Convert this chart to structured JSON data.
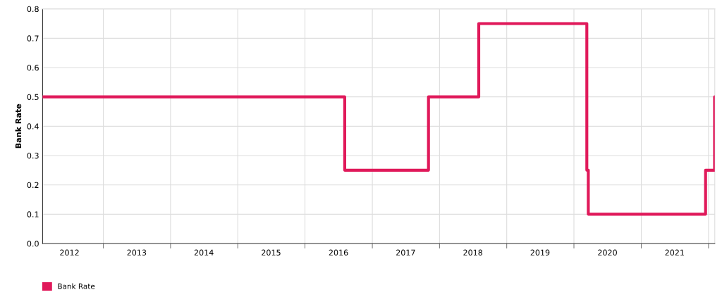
{
  "chart_data": {
    "type": "step",
    "ylabel": "Bank Rate",
    "x": [
      "2012-02-06",
      "2016-08-04",
      "2017-11-02",
      "2018-08-02",
      "2020-03-11",
      "2020-03-19",
      "2021-12-16",
      "2022-02-03",
      "2022-02-04"
    ],
    "series": [
      {
        "name": "Bank Rate",
        "color": "#e0195a",
        "values": [
          0.5,
          0.25,
          0.5,
          0.75,
          0.25,
          0.1,
          0.25,
          0.5,
          0.5
        ]
      }
    ],
    "xlim": [
      "2012-02-06",
      "2022-02-04"
    ],
    "xticks": [
      {
        "value": "2012-07-01",
        "label": "2012"
      },
      {
        "value": "2013-01-01",
        "label": null
      },
      {
        "value": "2013-07-01",
        "label": "2013"
      },
      {
        "value": "2014-01-01",
        "label": null
      },
      {
        "value": "2014-07-01",
        "label": "2014"
      },
      {
        "value": "2015-01-01",
        "label": null
      },
      {
        "value": "2015-07-01",
        "label": "2015"
      },
      {
        "value": "2016-01-01",
        "label": null
      },
      {
        "value": "2016-07-01",
        "label": "2016"
      },
      {
        "value": "2017-01-01",
        "label": null
      },
      {
        "value": "2017-07-01",
        "label": "2017"
      },
      {
        "value": "2018-01-01",
        "label": null
      },
      {
        "value": "2018-07-01",
        "label": "2018"
      },
      {
        "value": "2019-01-01",
        "label": null
      },
      {
        "value": "2019-07-01",
        "label": "2019"
      },
      {
        "value": "2020-01-01",
        "label": null
      },
      {
        "value": "2020-07-01",
        "label": "2020"
      },
      {
        "value": "2021-01-01",
        "label": null
      },
      {
        "value": "2021-07-01",
        "label": "2021"
      },
      {
        "value": "2022-01-01",
        "label": null
      }
    ],
    "ylim": [
      0,
      0.8
    ],
    "yticks": [
      {
        "value": 0,
        "label": "0.0"
      },
      0.1,
      0.2,
      0.3,
      0.4,
      0.5,
      0.6,
      0.7,
      0.8
    ],
    "grid": true,
    "legend": "bottom left",
    "line_style": "solid",
    "marker": "none"
  }
}
